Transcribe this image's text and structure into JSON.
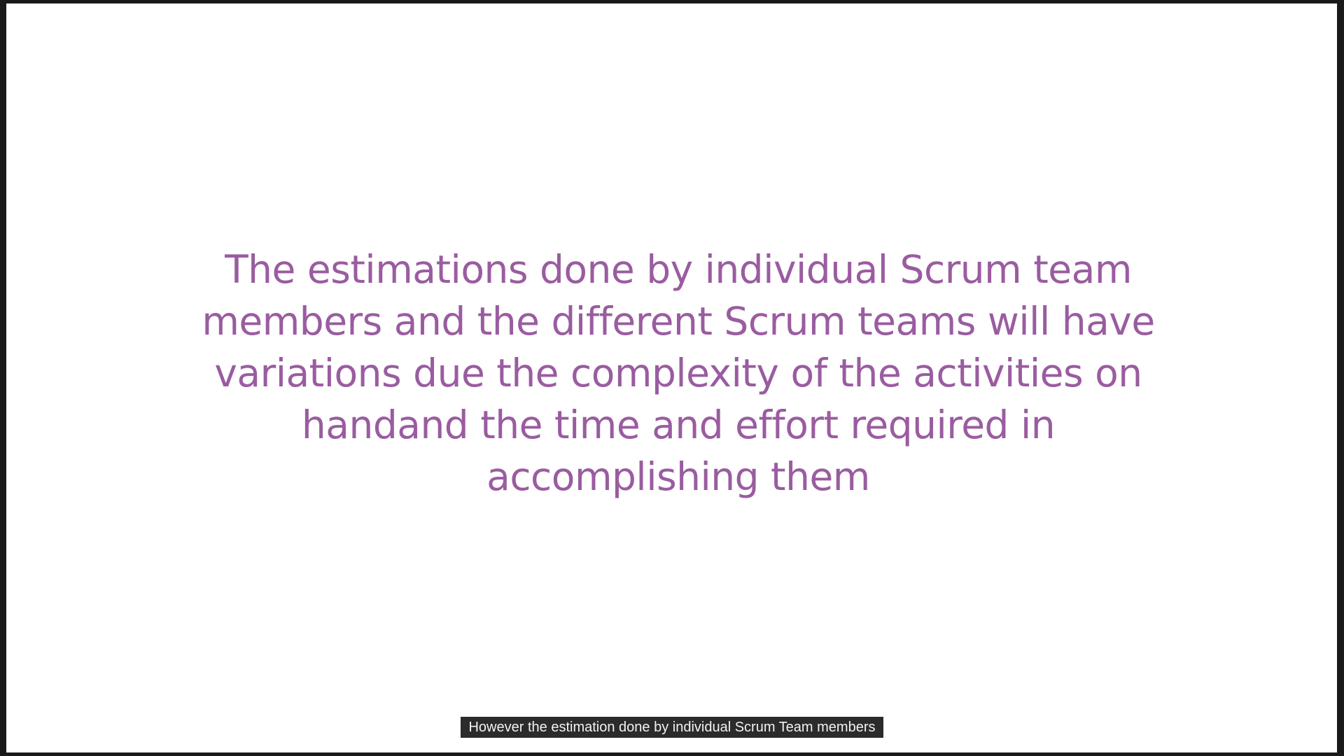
{
  "slide": {
    "lines": [
      "The estimations done by individual Scrum team",
      "members and the different Scrum teams will have",
      "variations due the complexity of the activities on",
      "handand the time and effort required in",
      "accomplishing them"
    ],
    "text_color": "#9a5ca0",
    "background": "#ffffff"
  },
  "caption": {
    "text": "However the estimation done by individual Scrum Team members"
  }
}
